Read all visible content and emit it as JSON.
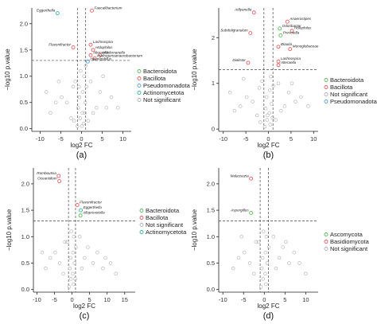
{
  "panels": [
    {
      "id": "a",
      "label": "(a)",
      "xlabel": "log2 FC",
      "ylabel": "−log10 p.value",
      "xlim": [
        -12,
        12
      ],
      "ylim": [
        -0.05,
        2.3
      ],
      "xticks": [
        -10,
        -5,
        0,
        5,
        10
      ],
      "yticks": [
        0.0,
        0.5,
        1.0,
        1.5,
        2.0
      ],
      "ytick_labels": [
        "0.0",
        "0.5",
        "1.0",
        "1.5",
        "2.0"
      ],
      "hline": 1.3,
      "vlines": [
        -1,
        1
      ],
      "legend": [
        {
          "name": "Bacteroidota",
          "color": "#5cb85c"
        },
        {
          "name": "Bacillota",
          "color": "#e06060"
        },
        {
          "name": "Pseudomonadota",
          "color": "#5aa0d8"
        },
        {
          "name": "Actinomycetota",
          "color": "#3cb0a0"
        },
        {
          "name": "Not significant",
          "color": "#b0b0b0"
        }
      ],
      "labeled_points": [
        {
          "label": "Eggerthella",
          "x": -5.8,
          "y": 2.2,
          "color": "#3cb0a0"
        },
        {
          "label": "Faecalibacterium",
          "x": 2.5,
          "y": 2.25,
          "color": "#e06060"
        },
        {
          "label": "Flavonifractor",
          "x": -2.0,
          "y": 1.55,
          "color": "#e06060"
        },
        {
          "label": "Lachnospira",
          "x": 2.2,
          "y": 1.6,
          "color": "#e06060"
        },
        {
          "label": "Holophilus",
          "x": 2.8,
          "y": 1.5,
          "color": "#e06060"
        },
        {
          "label": "Alteraella",
          "x": 2.2,
          "y": 1.4,
          "color": "#e06060"
        },
        {
          "label": "Holdemanella",
          "x": 4.5,
          "y": 1.4,
          "color": "#e06060"
        },
        {
          "label": "Hydrogenoanaerobacterium",
          "x": 3.2,
          "y": 1.34,
          "color": "#e06060"
        },
        {
          "label": "Haemophilus",
          "x": 1.5,
          "y": 1.28,
          "color": "#5aa0d8"
        }
      ]
    },
    {
      "id": "b",
      "label": "(b)",
      "xlabel": "log2 FC",
      "ylabel": "−log10 p.value",
      "xlim": [
        -11,
        11
      ],
      "ylim": [
        -0.05,
        2.65
      ],
      "xticks": [
        -10,
        -5,
        0,
        5,
        10
      ],
      "yticks": [
        0,
        1,
        2
      ],
      "ytick_labels": [
        "0",
        "1",
        "2"
      ],
      "hline": 1.3,
      "vlines": [
        -1,
        1
      ],
      "legend": [
        {
          "name": "Bacteroidota",
          "color": "#5cb85c"
        },
        {
          "name": "Bacillota",
          "color": "#e06060"
        },
        {
          "name": "Not significant",
          "color": "#b0b0b0"
        },
        {
          "name": "Pseudomonadota",
          "color": "#5aa0d8"
        }
      ],
      "labeled_points": [
        {
          "label": "Adlyanella",
          "x": -3.2,
          "y": 2.55,
          "color": "#e06060"
        },
        {
          "label": "Anaerostipes",
          "x": 4.2,
          "y": 2.35,
          "color": "#e06060"
        },
        {
          "label": "Odoribacter",
          "x": 2.5,
          "y": 2.2,
          "color": "#5cb85c"
        },
        {
          "label": "Holophilus",
          "x": 5.2,
          "y": 2.15,
          "color": "#e06060"
        },
        {
          "label": "Subdoligranulum",
          "x": -4.0,
          "y": 2.1,
          "color": "#e06060"
        },
        {
          "label": "Prevotella",
          "x": 2.7,
          "y": 2.05,
          "color": "#5cb85c"
        },
        {
          "label": "Blautia",
          "x": 2.2,
          "y": 1.8,
          "color": "#e06060"
        },
        {
          "label": "Monoglobaceae",
          "x": 4.8,
          "y": 1.75,
          "color": "#e06060"
        },
        {
          "label": "Lachnospira",
          "x": 2.2,
          "y": 1.48,
          "color": "#e06060"
        },
        {
          "label": "Dialister",
          "x": -4.5,
          "y": 1.45,
          "color": "#e06060"
        },
        {
          "label": "Alteraella",
          "x": 2.2,
          "y": 1.4,
          "color": "#e06060"
        }
      ]
    },
    {
      "id": "c",
      "label": "(c)",
      "xlabel": "log2 FC",
      "ylabel": "−log10 p.value",
      "xlim": [
        -11,
        18
      ],
      "ylim": [
        -0.05,
        2.3
      ],
      "xticks": [
        -10,
        -5,
        0,
        5,
        10,
        15
      ],
      "yticks": [
        0.0,
        0.5,
        1.0,
        1.5,
        2.0
      ],
      "ytick_labels": [
        "0.0",
        "0.5",
        "1.0",
        "1.5",
        "2.0"
      ],
      "hline": 1.3,
      "vlines": [
        -1,
        1
      ],
      "legend": [
        {
          "name": "Bacteroidota",
          "color": "#5cb85c"
        },
        {
          "name": "Bacillota",
          "color": "#e06060"
        },
        {
          "name": "Not significant",
          "color": "#b0b0b0"
        },
        {
          "name": "Actinomycetota",
          "color": "#3cb0a0"
        }
      ],
      "labeled_points": [
        {
          "label": "Romboutsia",
          "x": -3.8,
          "y": 2.15,
          "color": "#e06060"
        },
        {
          "label": "Oceanidium",
          "x": -3.6,
          "y": 2.05,
          "color": "#e06060"
        },
        {
          "label": "Flavonifractor",
          "x": 1.5,
          "y": 1.6,
          "color": "#e06060"
        },
        {
          "label": "Eggerthella",
          "x": 2.5,
          "y": 1.5,
          "color": "#3cb0a0"
        },
        {
          "label": "Alloprevotella",
          "x": 2.4,
          "y": 1.4,
          "color": "#5cb85c"
        }
      ]
    },
    {
      "id": "d",
      "label": "(d)",
      "xlabel": "log2 FC",
      "ylabel": "−log10 p.value",
      "xlim": [
        -11,
        13
      ],
      "ylim": [
        -0.05,
        2.3
      ],
      "xticks": [
        -10,
        -5,
        0,
        5,
        10
      ],
      "yticks": [
        0.0,
        0.5,
        1.0,
        1.5,
        2.0
      ],
      "ytick_labels": [
        "0.0",
        "0.5",
        "1.0",
        "1.5",
        "2.0"
      ],
      "hline": 1.3,
      "vlines": [
        -1,
        1
      ],
      "legend": [
        {
          "name": "Ascomycota",
          "color": "#5cb85c"
        },
        {
          "name": "Basidiomycota",
          "color": "#e06060"
        },
        {
          "name": "Not significant",
          "color": "#b0b0b0"
        }
      ],
      "labeled_points": [
        {
          "label": "Malassezia",
          "x": -3.2,
          "y": 2.1,
          "color": "#e06060"
        },
        {
          "label": "Aspergillus",
          "x": -3.2,
          "y": 1.45,
          "color": "#5cb85c"
        }
      ]
    }
  ],
  "chart_data": [
    {
      "type": "scatter",
      "panel": "(a)",
      "xlabel": "log2 FC",
      "ylabel": "−log10 p.value",
      "xlim": [
        -12,
        12
      ],
      "ylim": [
        -0.05,
        2.3
      ],
      "threshold_y": 1.3,
      "threshold_x": [
        -1,
        1
      ],
      "series": [
        {
          "name": "Not significant",
          "points": [
            [
              -1.0,
              0.05
            ],
            [
              0.5,
              0.1
            ],
            [
              -0.3,
              0.2
            ],
            [
              0.2,
              0.3
            ],
            [
              -0.8,
              0.4
            ],
            [
              0.9,
              0.5
            ],
            [
              -0.5,
              0.6
            ],
            [
              0.3,
              0.7
            ],
            [
              1.2,
              0.8
            ],
            [
              -1.5,
              0.9
            ],
            [
              0.6,
              1.0
            ],
            [
              -0.2,
              1.1
            ],
            [
              1.0,
              1.2
            ],
            [
              -2.5,
              0.2
            ],
            [
              2.8,
              0.3
            ],
            [
              -3.5,
              0.5
            ],
            [
              3.6,
              0.4
            ],
            [
              -4.8,
              0.6
            ],
            [
              4.5,
              0.7
            ],
            [
              -6.2,
              0.5
            ],
            [
              6.0,
              0.4
            ],
            [
              -7.5,
              0.3
            ],
            [
              7.2,
              0.6
            ],
            [
              -2.0,
              0.8
            ],
            [
              2.2,
              0.9
            ],
            [
              -5.5,
              0.9
            ],
            [
              5.2,
              1.0
            ],
            [
              -8.5,
              0.7
            ],
            [
              8.8,
              0.4
            ],
            [
              -1.8,
              0.15
            ],
            [
              1.6,
              0.15
            ],
            [
              0.1,
              0.05
            ],
            [
              -0.6,
              0.8
            ],
            [
              0.8,
              0.3
            ]
          ]
        }
      ]
    },
    {
      "type": "scatter",
      "panel": "(b)",
      "xlabel": "log2 FC",
      "ylabel": "−log10 p.value",
      "xlim": [
        -11,
        11
      ],
      "ylim": [
        -0.05,
        2.65
      ],
      "threshold_y": 1.3,
      "threshold_x": [
        -1,
        1
      ],
      "series": [
        {
          "name": "Not significant",
          "points": [
            [
              -0.8,
              0.05
            ],
            [
              0.4,
              0.1
            ],
            [
              -0.3,
              0.2
            ],
            [
              0.2,
              0.35
            ],
            [
              -0.6,
              0.45
            ],
            [
              0.7,
              0.55
            ],
            [
              -0.4,
              0.7
            ],
            [
              0.3,
              0.85
            ],
            [
              1.1,
              0.95
            ],
            [
              -1.4,
              1.05
            ],
            [
              0.5,
              1.15
            ],
            [
              -0.2,
              0.3
            ],
            [
              0.9,
              0.25
            ],
            [
              -2.5,
              0.3
            ],
            [
              2.8,
              0.4
            ],
            [
              -3.5,
              0.6
            ],
            [
              3.6,
              0.5
            ],
            [
              -4.8,
              0.7
            ],
            [
              4.5,
              0.8
            ],
            [
              -6.2,
              0.5
            ],
            [
              6.0,
              0.6
            ],
            [
              -7.5,
              0.4
            ],
            [
              7.2,
              0.7
            ],
            [
              -2.0,
              0.9
            ],
            [
              2.2,
              1.0
            ],
            [
              -5.5,
              1.1
            ],
            [
              5.2,
              1.0
            ],
            [
              -8.5,
              0.8
            ],
            [
              8.8,
              0.5
            ],
            [
              -1.8,
              0.15
            ],
            [
              1.6,
              0.2
            ]
          ]
        }
      ]
    },
    {
      "type": "scatter",
      "panel": "(c)",
      "xlabel": "log2 FC",
      "ylabel": "−log10 p.value",
      "xlim": [
        -11,
        18
      ],
      "ylim": [
        -0.05,
        2.3
      ],
      "threshold_y": 1.3,
      "threshold_x": [
        -1,
        1
      ],
      "series": [
        {
          "name": "Not significant",
          "points": [
            [
              -0.8,
              0.05
            ],
            [
              0.4,
              0.1
            ],
            [
              -0.3,
              0.2
            ],
            [
              0.2,
              0.3
            ],
            [
              -0.6,
              0.4
            ],
            [
              0.7,
              0.5
            ],
            [
              -0.4,
              0.6
            ],
            [
              0.3,
              0.7
            ],
            [
              1.1,
              0.8
            ],
            [
              -1.4,
              0.9
            ],
            [
              0.5,
              1.0
            ],
            [
              -0.2,
              1.1
            ],
            [
              0.9,
              0.2
            ],
            [
              -2.5,
              0.3
            ],
            [
              2.8,
              0.4
            ],
            [
              -3.5,
              0.5
            ],
            [
              3.6,
              0.6
            ],
            [
              -4.8,
              0.7
            ],
            [
              4.5,
              0.8
            ],
            [
              -6.2,
              0.6
            ],
            [
              6.0,
              0.5
            ],
            [
              -7.5,
              0.4
            ],
            [
              7.2,
              0.7
            ],
            [
              -2.0,
              0.9
            ],
            [
              2.2,
              1.0
            ],
            [
              9.5,
              0.6
            ],
            [
              11.0,
              0.5
            ],
            [
              12.5,
              0.3
            ],
            [
              -8.5,
              0.7
            ],
            [
              8.8,
              0.4
            ]
          ]
        }
      ]
    },
    {
      "type": "scatter",
      "panel": "(d)",
      "xlabel": "log2 FC",
      "ylabel": "−log10 p.value",
      "xlim": [
        -11,
        13
      ],
      "ylim": [
        -0.05,
        2.3
      ],
      "threshold_y": 1.3,
      "threshold_x": [
        -1,
        1
      ],
      "series": [
        {
          "name": "Not significant",
          "points": [
            [
              -0.8,
              0.05
            ],
            [
              0.4,
              0.1
            ],
            [
              -0.3,
              0.2
            ],
            [
              0.2,
              0.3
            ],
            [
              -0.6,
              0.4
            ],
            [
              0.7,
              0.5
            ],
            [
              -0.4,
              0.6
            ],
            [
              0.3,
              0.7
            ],
            [
              1.1,
              0.8
            ],
            [
              -1.4,
              0.9
            ],
            [
              0.5,
              1.0
            ],
            [
              -0.2,
              1.1
            ],
            [
              -2.5,
              0.3
            ],
            [
              2.8,
              0.4
            ],
            [
              -3.5,
              0.5
            ],
            [
              3.6,
              0.6
            ],
            [
              -4.8,
              0.7
            ],
            [
              4.5,
              0.8
            ],
            [
              -6.2,
              0.6
            ],
            [
              6.0,
              0.5
            ],
            [
              -7.5,
              0.4
            ],
            [
              7.2,
              0.7
            ],
            [
              -2.0,
              0.9
            ],
            [
              2.2,
              1.0
            ],
            [
              -5.5,
              1.0
            ],
            [
              5.2,
              0.9
            ],
            [
              8.5,
              0.5
            ],
            [
              10.0,
              0.3
            ]
          ]
        }
      ]
    }
  ]
}
